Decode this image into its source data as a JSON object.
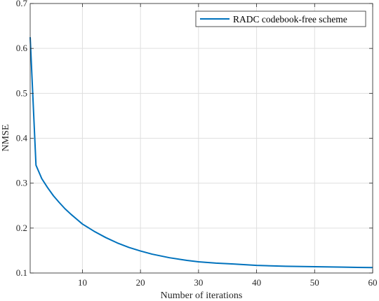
{
  "chart_data": {
    "type": "line",
    "xlabel": "Number of iterations",
    "ylabel": "NMSE",
    "xlim": [
      1,
      60
    ],
    "ylim": [
      0.1,
      0.7
    ],
    "xticks": [
      10,
      20,
      30,
      40,
      50,
      60
    ],
    "yticks": [
      0.1,
      0.2,
      0.3,
      0.4,
      0.5,
      0.6,
      0.7
    ],
    "xtick_labels": [
      "10",
      "20",
      "30",
      "40",
      "50",
      "60"
    ],
    "ytick_labels": [
      "0.1",
      "0.2",
      "0.3",
      "0.4",
      "0.5",
      "0.6",
      "0.7"
    ],
    "grid": true,
    "legend_position": "top-right",
    "series": [
      {
        "name": "RADC codebook-free scheme",
        "color": "#0072bd",
        "x": [
          1,
          2,
          3,
          4,
          5,
          6,
          7,
          8,
          9,
          10,
          12,
          14,
          16,
          18,
          20,
          22,
          25,
          28,
          30,
          33,
          36,
          40,
          45,
          50,
          55,
          60
        ],
        "y": [
          0.625,
          0.34,
          0.31,
          0.29,
          0.272,
          0.257,
          0.243,
          0.231,
          0.22,
          0.209,
          0.193,
          0.179,
          0.167,
          0.157,
          0.149,
          0.142,
          0.134,
          0.128,
          0.125,
          0.122,
          0.12,
          0.117,
          0.115,
          0.114,
          0.113,
          0.112
        ]
      }
    ]
  }
}
